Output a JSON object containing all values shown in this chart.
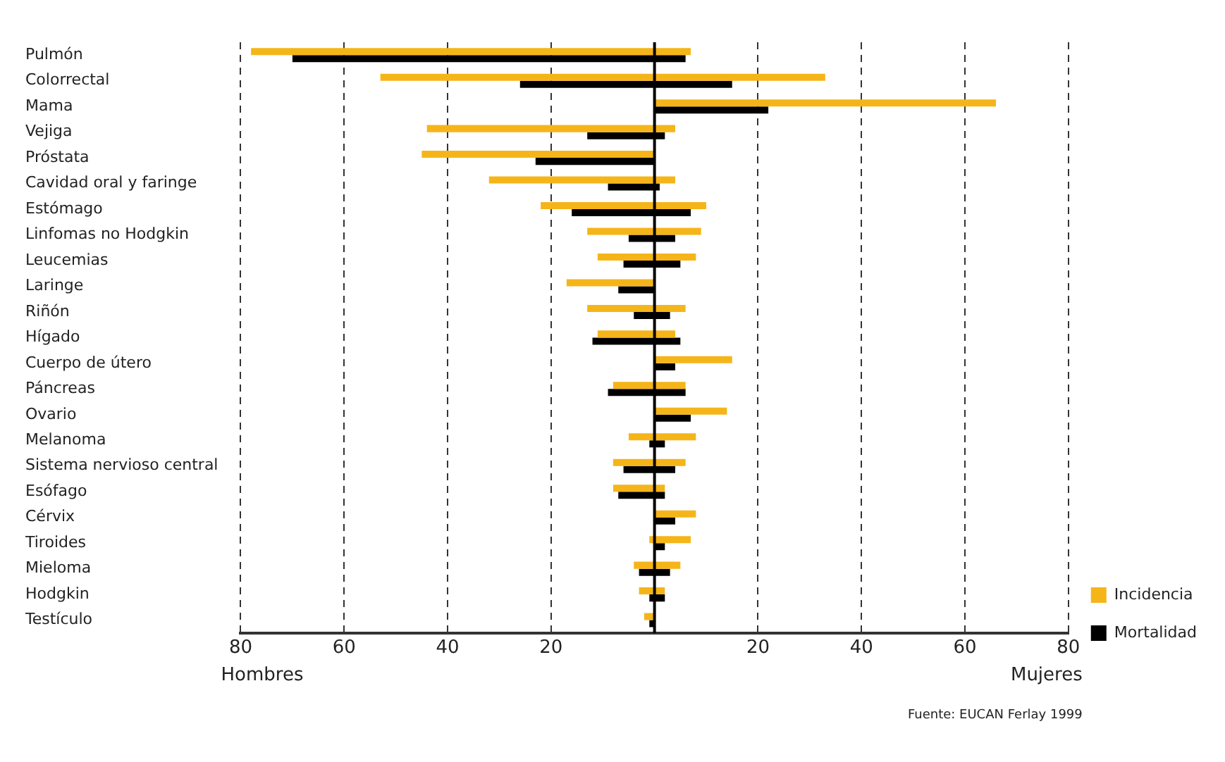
{
  "chart_data": {
    "type": "bar",
    "orientation": "horizontal",
    "categories": [
      "Pulmón",
      "Colorrectal",
      "Mama",
      "Vejiga",
      "Próstata",
      "Cavidad oral y faringe",
      "Estómago",
      "Linfomas no Hodgkin",
      "Leucemias",
      "Laringe",
      "Riñón",
      "Hígado",
      "Cuerpo de útero",
      "Páncreas",
      "Ovario",
      "Melanoma",
      "Sistema nervioso central",
      "Esófago",
      "Cérvix",
      "Tiroides",
      "Mieloma",
      "Hodgkin",
      "Testículo"
    ],
    "series": [
      {
        "name": "Incidencia",
        "color": "#f5b519",
        "base": [
          -78,
          -53,
          0,
          -44,
          -45,
          -32,
          -22,
          -13,
          -11,
          -17,
          -13,
          -11,
          0,
          -8,
          0,
          -5,
          -8,
          -8,
          0,
          -1,
          -4,
          -3,
          -2
        ],
        "values": [
          85,
          86,
          66,
          48,
          45,
          36,
          32,
          22,
          19,
          17,
          19,
          15,
          15,
          14,
          14,
          13,
          14,
          10,
          8,
          8,
          9,
          5,
          2
        ]
      },
      {
        "name": "Mortalidad",
        "color": "#000000",
        "base": [
          -70,
          -26,
          0,
          -13,
          -23,
          -9,
          -16,
          -5,
          -6,
          -7,
          -4,
          -12,
          0,
          -9,
          0,
          -1,
          -6,
          -7,
          0,
          0,
          -3,
          -1,
          -1
        ],
        "values": [
          76,
          41,
          22,
          15,
          23,
          10,
          23,
          9,
          11,
          7,
          7,
          17,
          4,
          15,
          7,
          3,
          10,
          9,
          4,
          2,
          6,
          3,
          1
        ]
      }
    ],
    "xlim": [
      -80,
      80
    ],
    "xticks": [
      {
        "value": -80,
        "label": "80"
      },
      {
        "value": -60,
        "label": "60"
      },
      {
        "value": -40,
        "label": "40"
      },
      {
        "value": -20,
        "label": "20"
      },
      {
        "value": 20,
        "label": "20"
      },
      {
        "value": 40,
        "label": "40"
      },
      {
        "value": 60,
        "label": "60"
      },
      {
        "value": 80,
        "label": "80"
      }
    ],
    "ref_lines": [
      {
        "axis": "x",
        "value": 0,
        "color": "#000000"
      }
    ],
    "grid": "x",
    "legend": "right",
    "annotations": [
      "Hombres",
      "Mujeres",
      "Fuente: EUCAN Ferlay 1999"
    ]
  }
}
